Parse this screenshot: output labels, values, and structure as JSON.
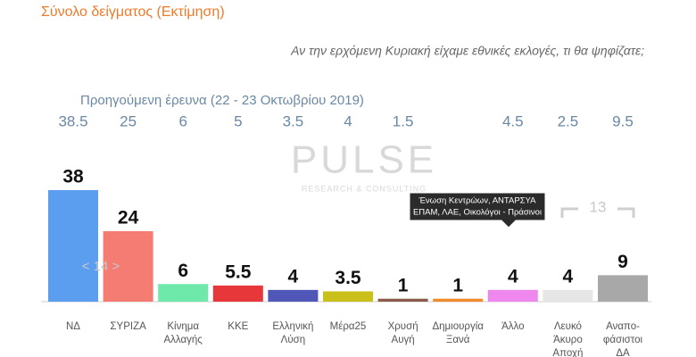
{
  "chart_data": {
    "type": "bar",
    "title": "Σύνολο δείγματος   (Εκτίμηση)",
    "question": "Αν την ερχόμενη Κυριακή είχαμε εθνικές εκλογές, τι θα ψηφίζατε;",
    "previous_title": "Προηγούμενη έρευνα  (22 - 23  Οκτωβρίου  2019)",
    "watermark": "PULSE",
    "watermark_sub": "RESEARCH & CONSULTING",
    "categories": [
      [
        "ΝΔ"
      ],
      [
        "ΣΥΡΙΖΑ"
      ],
      [
        "Κίνημα",
        "Αλλαγής"
      ],
      [
        "ΚΚΕ"
      ],
      [
        "Ελληνική",
        "Λύση"
      ],
      [
        "Μέρα25"
      ],
      [
        "Χρυσή",
        "Αυγή"
      ],
      [
        "Δημιουργία",
        "Ξανά"
      ],
      [
        "Άλλο"
      ],
      [
        "Λευκό",
        "Άκυρο",
        "Αποχή"
      ],
      [
        "Αναπο-",
        "φάσιστοι",
        "ΔΑ"
      ]
    ],
    "values": [
      38,
      24,
      6,
      5.5,
      4,
      3.5,
      1,
      1,
      4,
      4,
      9
    ],
    "colors": [
      "#5b9ef0",
      "#f47c72",
      "#6ee9a9",
      "#e8373a",
      "#5157b8",
      "#c9c01b",
      "#8b5a4a",
      "#f08a2a",
      "#ee88ee",
      "#e6e6e6",
      "#a8a8a8"
    ],
    "previous_values": [
      38.5,
      25,
      6,
      5,
      3.5,
      4,
      1.5,
      null,
      4.5,
      2.5,
      9.5
    ],
    "annotations": [
      "< 14 >",
      "13"
    ],
    "tooltip": [
      "Ένωση Κεντρώων, ΑΝΤΑΡΣΥΑ",
      "ΕΠΑΜ, ΛΑΕ, Οικολόγοι - Πράσινοι"
    ]
  }
}
